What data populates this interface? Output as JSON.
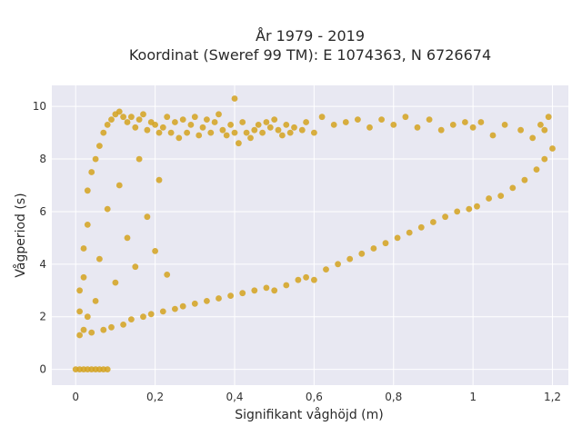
{
  "chart_data": {
    "type": "scatter",
    "title_line1": "År 1979 - 2019",
    "title_line2": "Koordinat (Sweref 99 TM): E 1074363, N 6726674",
    "xlabel": "Signifikant våghöjd (m)",
    "ylabel": "Vågperiod (s)",
    "xlim": [
      -0.06,
      1.24
    ],
    "ylim": [
      -0.6,
      10.8
    ],
    "x_ticks": [
      0,
      0.2,
      0.4,
      0.6,
      0.8,
      1.0,
      1.2
    ],
    "x_tick_labels": [
      "0",
      "0,2",
      "0,4",
      "0,6",
      "0,8",
      "1",
      "1,2"
    ],
    "y_ticks": [
      0,
      2,
      4,
      6,
      8,
      10
    ],
    "y_tick_labels": [
      "0",
      "2",
      "4",
      "6",
      "8",
      "10"
    ],
    "grid": true,
    "legend": "none",
    "marker_color": "#D4A21E",
    "plot_background": "#E8E8F2",
    "series": [
      {
        "points": [
          [
            0.0,
            0.0
          ],
          [
            0.01,
            0.0
          ],
          [
            0.02,
            0.0
          ],
          [
            0.03,
            0.0
          ],
          [
            0.04,
            0.0
          ],
          [
            0.05,
            0.0
          ],
          [
            0.06,
            0.0
          ],
          [
            0.07,
            0.0
          ],
          [
            0.08,
            0.0
          ],
          [
            0.01,
            1.3
          ],
          [
            0.01,
            2.2
          ],
          [
            0.01,
            3.0
          ],
          [
            0.02,
            1.5
          ],
          [
            0.02,
            3.5
          ],
          [
            0.02,
            4.6
          ],
          [
            0.03,
            2.0
          ],
          [
            0.03,
            5.5
          ],
          [
            0.03,
            6.8
          ],
          [
            0.04,
            1.4
          ],
          [
            0.04,
            7.5
          ],
          [
            0.05,
            8.0
          ],
          [
            0.05,
            2.6
          ],
          [
            0.06,
            8.5
          ],
          [
            0.06,
            4.2
          ],
          [
            0.07,
            9.0
          ],
          [
            0.07,
            1.5
          ],
          [
            0.08,
            9.3
          ],
          [
            0.08,
            6.1
          ],
          [
            0.09,
            9.5
          ],
          [
            0.09,
            1.6
          ],
          [
            0.1,
            9.7
          ],
          [
            0.1,
            3.3
          ],
          [
            0.11,
            9.8
          ],
          [
            0.11,
            7.0
          ],
          [
            0.12,
            9.6
          ],
          [
            0.12,
            1.7
          ],
          [
            0.13,
            9.4
          ],
          [
            0.13,
            5.0
          ],
          [
            0.14,
            9.6
          ],
          [
            0.14,
            1.9
          ],
          [
            0.15,
            9.2
          ],
          [
            0.15,
            3.9
          ],
          [
            0.16,
            9.5
          ],
          [
            0.16,
            8.0
          ],
          [
            0.17,
            9.7
          ],
          [
            0.17,
            2.0
          ],
          [
            0.18,
            9.1
          ],
          [
            0.18,
            5.8
          ],
          [
            0.19,
            9.4
          ],
          [
            0.19,
            2.1
          ],
          [
            0.2,
            9.3
          ],
          [
            0.2,
            4.5
          ],
          [
            0.21,
            9.0
          ],
          [
            0.21,
            7.2
          ],
          [
            0.22,
            9.2
          ],
          [
            0.22,
            2.2
          ],
          [
            0.23,
            9.6
          ],
          [
            0.23,
            3.6
          ],
          [
            0.24,
            9.0
          ],
          [
            0.25,
            9.4
          ],
          [
            0.25,
            2.3
          ],
          [
            0.26,
            8.8
          ],
          [
            0.27,
            9.5
          ],
          [
            0.27,
            2.4
          ],
          [
            0.28,
            9.0
          ],
          [
            0.29,
            9.3
          ],
          [
            0.3,
            9.6
          ],
          [
            0.3,
            2.5
          ],
          [
            0.31,
            8.9
          ],
          [
            0.32,
            9.2
          ],
          [
            0.33,
            9.5
          ],
          [
            0.33,
            2.6
          ],
          [
            0.34,
            9.0
          ],
          [
            0.35,
            9.4
          ],
          [
            0.36,
            9.7
          ],
          [
            0.36,
            2.7
          ],
          [
            0.37,
            9.1
          ],
          [
            0.38,
            8.9
          ],
          [
            0.39,
            9.3
          ],
          [
            0.39,
            2.8
          ],
          [
            0.4,
            10.3
          ],
          [
            0.4,
            9.0
          ],
          [
            0.41,
            8.6
          ],
          [
            0.42,
            9.4
          ],
          [
            0.42,
            2.9
          ],
          [
            0.43,
            9.0
          ],
          [
            0.44,
            8.8
          ],
          [
            0.45,
            9.1
          ],
          [
            0.45,
            3.0
          ],
          [
            0.46,
            9.3
          ],
          [
            0.47,
            9.0
          ],
          [
            0.48,
            9.4
          ],
          [
            0.48,
            3.1
          ],
          [
            0.49,
            9.2
          ],
          [
            0.5,
            9.5
          ],
          [
            0.5,
            3.0
          ],
          [
            0.51,
            9.1
          ],
          [
            0.52,
            8.9
          ],
          [
            0.53,
            9.3
          ],
          [
            0.53,
            3.2
          ],
          [
            0.54,
            9.0
          ],
          [
            0.55,
            9.2
          ],
          [
            0.56,
            3.4
          ],
          [
            0.57,
            9.1
          ],
          [
            0.58,
            9.4
          ],
          [
            0.58,
            3.5
          ],
          [
            0.6,
            9.0
          ],
          [
            0.6,
            3.4
          ],
          [
            0.62,
            9.6
          ],
          [
            0.63,
            3.8
          ],
          [
            0.65,
            9.3
          ],
          [
            0.66,
            4.0
          ],
          [
            0.68,
            9.4
          ],
          [
            0.69,
            4.2
          ],
          [
            0.71,
            9.5
          ],
          [
            0.72,
            4.4
          ],
          [
            0.74,
            9.2
          ],
          [
            0.75,
            4.6
          ],
          [
            0.77,
            9.5
          ],
          [
            0.78,
            4.8
          ],
          [
            0.8,
            9.3
          ],
          [
            0.81,
            5.0
          ],
          [
            0.83,
            9.6
          ],
          [
            0.84,
            5.2
          ],
          [
            0.86,
            9.2
          ],
          [
            0.87,
            5.4
          ],
          [
            0.89,
            9.5
          ],
          [
            0.9,
            5.6
          ],
          [
            0.92,
            9.1
          ],
          [
            0.93,
            5.8
          ],
          [
            0.95,
            9.3
          ],
          [
            0.96,
            6.0
          ],
          [
            0.98,
            9.4
          ],
          [
            0.99,
            6.1
          ],
          [
            1.0,
            9.2
          ],
          [
            1.01,
            6.2
          ],
          [
            1.02,
            9.4
          ],
          [
            1.04,
            6.5
          ],
          [
            1.05,
            8.9
          ],
          [
            1.07,
            6.6
          ],
          [
            1.08,
            9.3
          ],
          [
            1.1,
            6.9
          ],
          [
            1.12,
            9.1
          ],
          [
            1.13,
            7.2
          ],
          [
            1.15,
            8.8
          ],
          [
            1.16,
            7.6
          ],
          [
            1.17,
            9.3
          ],
          [
            1.18,
            9.1
          ],
          [
            1.18,
            8.0
          ],
          [
            1.19,
            9.6
          ],
          [
            1.2,
            8.4
          ]
        ]
      }
    ]
  }
}
